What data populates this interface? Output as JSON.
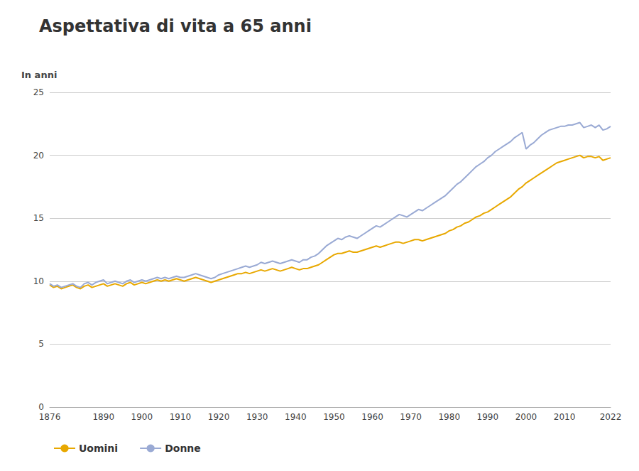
{
  "chart_data": {
    "type": "line",
    "title": "Aspettativa di vita a 65 anni",
    "ylabel": "In anni",
    "x": [
      1876,
      1877,
      1878,
      1879,
      1880,
      1881,
      1882,
      1883,
      1884,
      1885,
      1886,
      1887,
      1888,
      1889,
      1890,
      1891,
      1892,
      1893,
      1894,
      1895,
      1896,
      1897,
      1898,
      1899,
      1900,
      1901,
      1902,
      1903,
      1904,
      1905,
      1906,
      1907,
      1908,
      1909,
      1910,
      1911,
      1912,
      1913,
      1914,
      1915,
      1916,
      1917,
      1918,
      1919,
      1920,
      1921,
      1922,
      1923,
      1924,
      1925,
      1926,
      1927,
      1928,
      1929,
      1930,
      1931,
      1932,
      1933,
      1934,
      1935,
      1936,
      1937,
      1938,
      1939,
      1940,
      1941,
      1942,
      1943,
      1944,
      1945,
      1946,
      1947,
      1948,
      1949,
      1950,
      1951,
      1952,
      1953,
      1954,
      1955,
      1956,
      1957,
      1958,
      1959,
      1960,
      1961,
      1962,
      1963,
      1964,
      1965,
      1966,
      1967,
      1968,
      1969,
      1970,
      1971,
      1972,
      1973,
      1974,
      1975,
      1976,
      1977,
      1978,
      1979,
      1980,
      1981,
      1982,
      1983,
      1984,
      1985,
      1986,
      1987,
      1988,
      1989,
      1990,
      1991,
      1992,
      1993,
      1994,
      1995,
      1996,
      1997,
      1998,
      1999,
      2000,
      2001,
      2002,
      2003,
      2004,
      2005,
      2006,
      2007,
      2008,
      2009,
      2010,
      2011,
      2012,
      2013,
      2014,
      2015,
      2016,
      2017,
      2018,
      2019,
      2020,
      2021,
      2022
    ],
    "series": [
      {
        "name": "Uomini",
        "color": "#E8A800",
        "values": [
          9.7,
          9.5,
          9.6,
          9.4,
          9.5,
          9.6,
          9.7,
          9.5,
          9.4,
          9.6,
          9.7,
          9.5,
          9.6,
          9.7,
          9.8,
          9.6,
          9.7,
          9.8,
          9.7,
          9.6,
          9.8,
          9.9,
          9.7,
          9.8,
          9.9,
          9.8,
          9.9,
          10.0,
          10.1,
          10.0,
          10.1,
          10.0,
          10.1,
          10.2,
          10.1,
          10.0,
          10.1,
          10.2,
          10.3,
          10.2,
          10.1,
          10.0,
          9.9,
          10.0,
          10.1,
          10.2,
          10.3,
          10.4,
          10.5,
          10.6,
          10.6,
          10.7,
          10.6,
          10.7,
          10.8,
          10.9,
          10.8,
          10.9,
          11.0,
          10.9,
          10.8,
          10.9,
          11.0,
          11.1,
          11.0,
          10.9,
          11.0,
          11.0,
          11.1,
          11.2,
          11.3,
          11.5,
          11.7,
          11.9,
          12.1,
          12.2,
          12.2,
          12.3,
          12.4,
          12.3,
          12.3,
          12.4,
          12.5,
          12.6,
          12.7,
          12.8,
          12.7,
          12.8,
          12.9,
          13.0,
          13.1,
          13.1,
          13.0,
          13.1,
          13.2,
          13.3,
          13.3,
          13.2,
          13.3,
          13.4,
          13.5,
          13.6,
          13.7,
          13.8,
          14.0,
          14.1,
          14.3,
          14.4,
          14.6,
          14.7,
          14.9,
          15.1,
          15.2,
          15.4,
          15.5,
          15.7,
          15.9,
          16.1,
          16.3,
          16.5,
          16.7,
          17.0,
          17.3,
          17.5,
          17.8,
          18.0,
          18.2,
          18.4,
          18.6,
          18.8,
          19.0,
          19.2,
          19.4,
          19.5,
          19.6,
          19.7,
          19.8,
          19.9,
          20.0,
          19.8,
          19.9,
          19.9,
          19.8,
          19.9,
          19.6,
          19.7,
          19.8
        ]
      },
      {
        "name": "Donne",
        "color": "#9aaad4",
        "values": [
          9.8,
          9.6,
          9.7,
          9.5,
          9.6,
          9.7,
          9.8,
          9.6,
          9.5,
          9.8,
          9.9,
          9.7,
          9.9,
          10.0,
          10.1,
          9.8,
          9.9,
          10.0,
          9.9,
          9.8,
          10.0,
          10.1,
          9.9,
          10.0,
          10.1,
          10.0,
          10.1,
          10.2,
          10.3,
          10.2,
          10.3,
          10.2,
          10.3,
          10.4,
          10.3,
          10.3,
          10.4,
          10.5,
          10.6,
          10.5,
          10.4,
          10.3,
          10.2,
          10.3,
          10.5,
          10.6,
          10.7,
          10.8,
          10.9,
          11.0,
          11.1,
          11.2,
          11.1,
          11.2,
          11.3,
          11.5,
          11.4,
          11.5,
          11.6,
          11.5,
          11.4,
          11.5,
          11.6,
          11.7,
          11.6,
          11.5,
          11.7,
          11.7,
          11.9,
          12.0,
          12.2,
          12.5,
          12.8,
          13.0,
          13.2,
          13.4,
          13.3,
          13.5,
          13.6,
          13.5,
          13.4,
          13.6,
          13.8,
          14.0,
          14.2,
          14.4,
          14.3,
          14.5,
          14.7,
          14.9,
          15.1,
          15.3,
          15.2,
          15.1,
          15.3,
          15.5,
          15.7,
          15.6,
          15.8,
          16.0,
          16.2,
          16.4,
          16.6,
          16.8,
          17.1,
          17.4,
          17.7,
          17.9,
          18.2,
          18.5,
          18.8,
          19.1,
          19.3,
          19.5,
          19.8,
          20.0,
          20.3,
          20.5,
          20.7,
          20.9,
          21.1,
          21.4,
          21.6,
          21.8,
          20.5,
          20.8,
          21.0,
          21.3,
          21.6,
          21.8,
          22.0,
          22.1,
          22.2,
          22.3,
          22.3,
          22.4,
          22.4,
          22.5,
          22.6,
          22.2,
          22.3,
          22.4,
          22.2,
          22.4,
          22.0,
          22.1,
          22.3
        ]
      }
    ],
    "xlim": [
      1876,
      2022
    ],
    "xticks": [
      1876,
      1890,
      1900,
      1910,
      1920,
      1930,
      1940,
      1950,
      1960,
      1970,
      1980,
      1990,
      2000,
      2010,
      2022
    ],
    "ylim": [
      0,
      25
    ],
    "yticks": [
      0,
      5,
      10,
      15,
      20,
      25
    ],
    "grid": true,
    "legend": "bottom"
  }
}
